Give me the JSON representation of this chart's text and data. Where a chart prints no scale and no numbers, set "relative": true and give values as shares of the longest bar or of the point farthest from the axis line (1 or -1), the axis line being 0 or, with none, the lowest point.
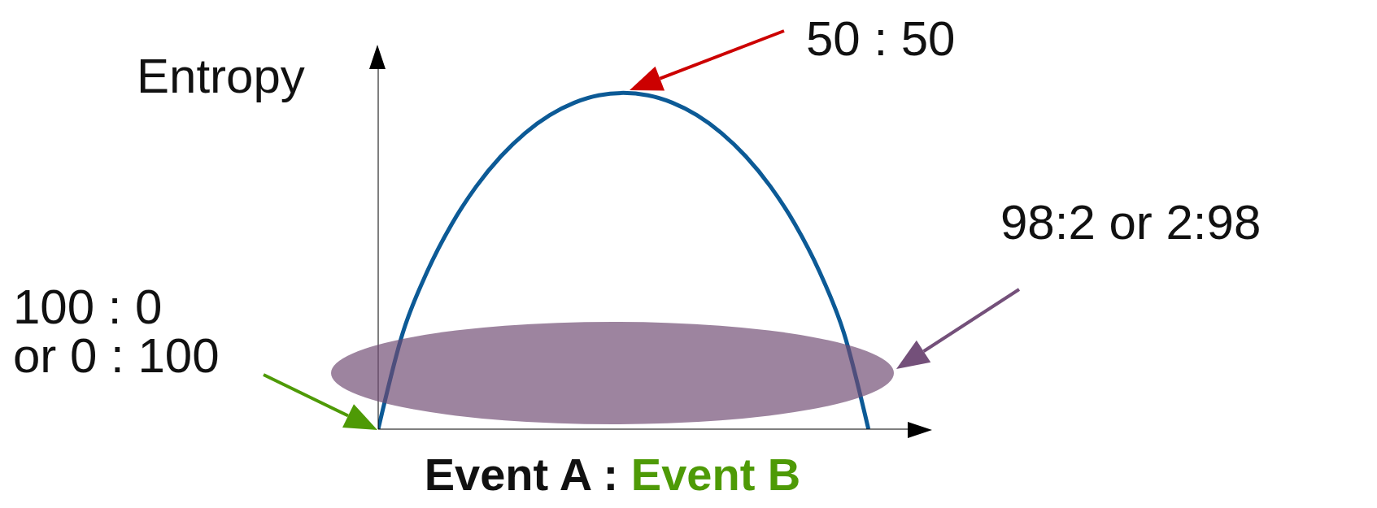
{
  "chart_data": {
    "type": "line",
    "relative": true,
    "ylabel": "Entropy",
    "xlabel": "Event A : Event B",
    "categories": [
      null,
      null,
      null,
      null,
      null,
      null,
      null,
      null,
      null,
      null,
      null,
      null,
      null,
      null,
      null,
      null,
      null,
      null,
      null,
      null,
      null
    ],
    "series": [
      {
        "color": "#0c5a96",
        "values": [
          0,
          0.286,
          0.469,
          0.61,
          0.722,
          0.811,
          0.881,
          0.934,
          0.971,
          0.993,
          1,
          0.993,
          0.971,
          0.934,
          0.881,
          0.811,
          0.722,
          0.61,
          0.469,
          0.286,
          0
        ]
      }
    ],
    "annotations": [
      "50 : 50",
      "98:2 or 2:98",
      "100 : 0\nor 0 : 100"
    ]
  }
}
